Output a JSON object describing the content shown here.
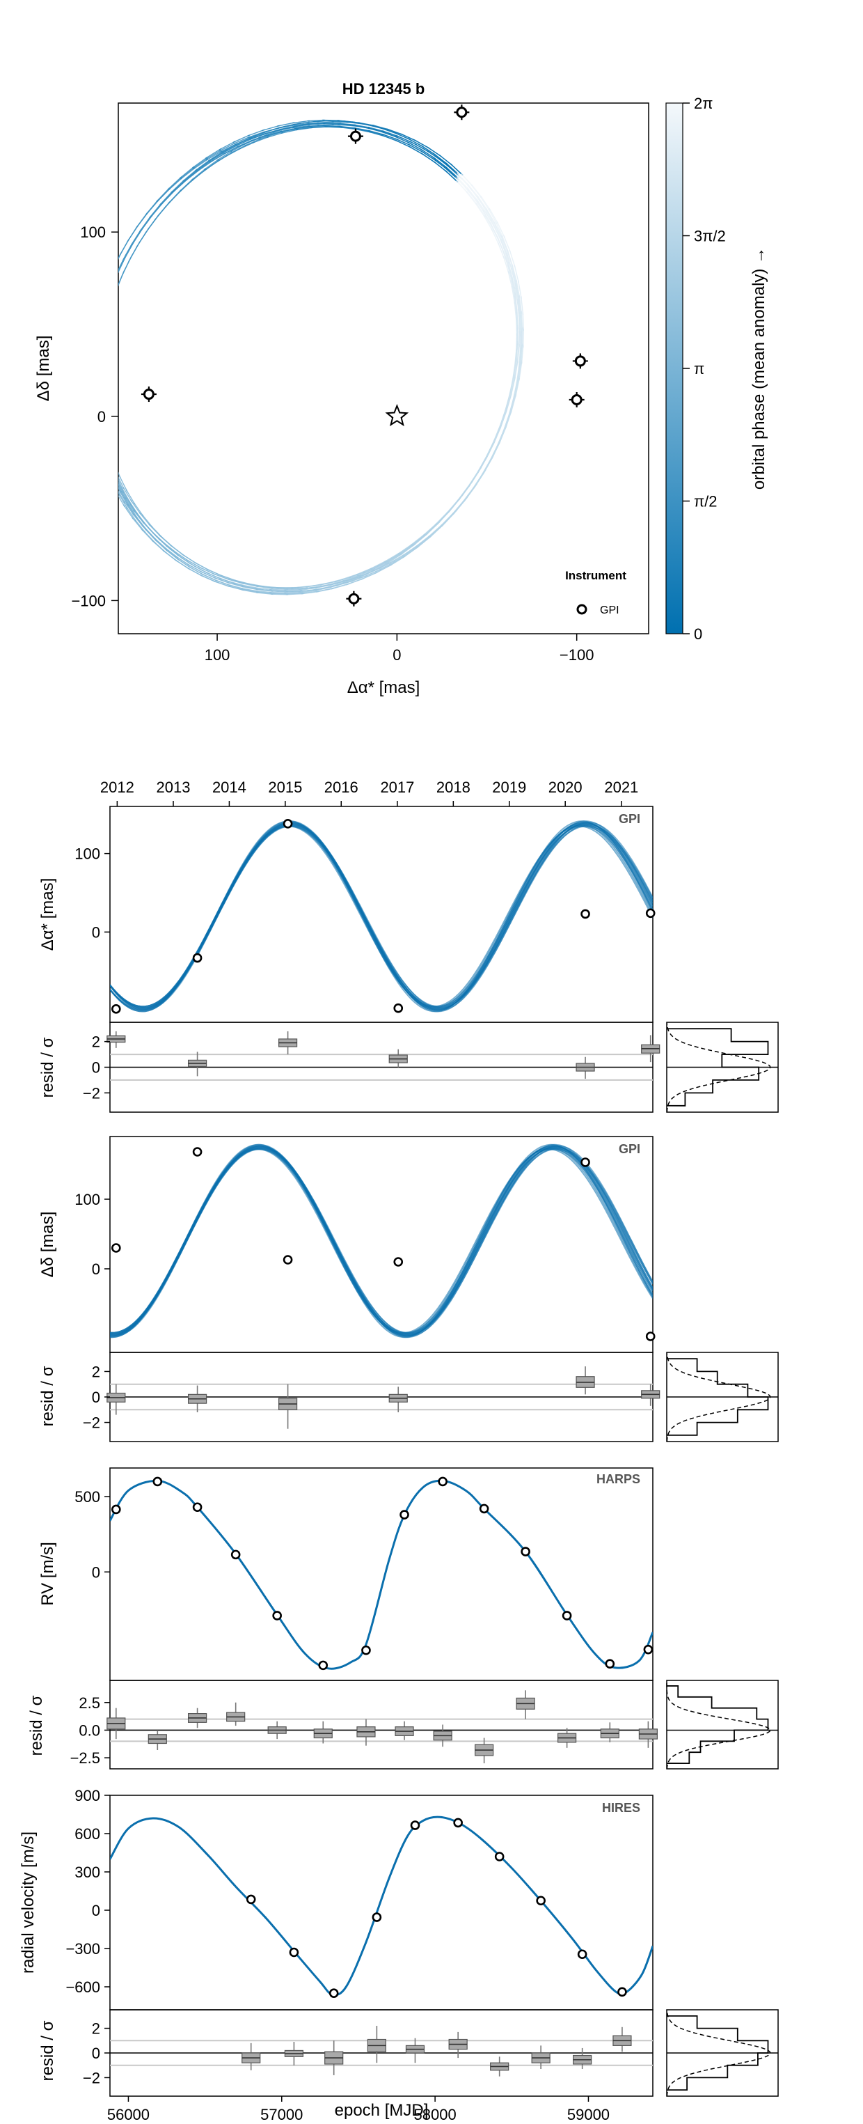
{
  "chart_data": [
    {
      "id": "sky",
      "type": "scatter",
      "title": "HD 12345 b",
      "xlabel": "Δα* [mas]",
      "ylabel": "Δδ [mas]",
      "xlim": [
        155,
        -140
      ],
      "ylim": [
        -118,
        170
      ],
      "xticks": [
        100,
        0,
        -100
      ],
      "xtick_labels": [
        "100",
        "0",
        "−100"
      ],
      "yticks": [
        -100,
        0,
        100
      ],
      "ytick_labels": [
        "−100",
        "0",
        "100"
      ],
      "orbit": {
        "center_x": 50,
        "center_y": 32,
        "a": 115,
        "b": 130,
        "rot_deg": 28
      },
      "points": [
        {
          "x": 23,
          "y": 152
        },
        {
          "x": -36,
          "y": 165
        },
        {
          "x": 138,
          "y": 12
        },
        {
          "x": -102,
          "y": 30
        },
        {
          "x": -100,
          "y": 9
        },
        {
          "x": 24,
          "y": -99
        }
      ],
      "star": {
        "x": 0,
        "y": 0
      },
      "colorbar": {
        "label": "orbital phase (mean anomaly) →",
        "ticks": [
          "0",
          "π/2",
          "π",
          "3π/2",
          "2π"
        ],
        "color_low": "#0070b0",
        "color_high": "#f4f8fb"
      },
      "legend": {
        "title": "Instrument",
        "entries": [
          "GPI"
        ],
        "position": "bottom-right"
      }
    },
    {
      "id": "ra",
      "type": "line",
      "ylabel": "Δα* [mas]",
      "instrument": "GPI",
      "top_axis": {
        "labels": [
          "2012",
          "2013",
          "2014",
          "2015",
          "2016",
          "2017",
          "2018",
          "2019",
          "2020",
          "2021"
        ],
        "mjd": [
          55927,
          56293,
          56658,
          57023,
          57388,
          57754,
          58119,
          58484,
          58849,
          59215
        ]
      },
      "xlim": [
        55880,
        59420
      ],
      "ylim": [
        -115,
        160
      ],
      "yticks": [
        0,
        100
      ],
      "ytick_labels": [
        "0",
        "100"
      ],
      "model": {
        "offset": 20,
        "amp": 118,
        "period": 1920,
        "t0": 56575
      },
      "points": [
        {
          "x": 55920,
          "y": -98
        },
        {
          "x": 56450,
          "y": -33
        },
        {
          "x": 57040,
          "y": 138
        },
        {
          "x": 57760,
          "y": -97
        },
        {
          "x": 58980,
          "y": 23
        },
        {
          "x": 59405,
          "y": 24
        }
      ]
    },
    {
      "id": "ra_resid",
      "type": "box",
      "ylabel": "resid / σ",
      "xlim": [
        55880,
        59420
      ],
      "ylim": [
        -3.5,
        3.5
      ],
      "yticks": [
        -2,
        0,
        2
      ],
      "ytick_labels": [
        "−2",
        "0",
        "2"
      ],
      "hlines": [
        1,
        -1
      ],
      "boxes": [
        {
          "x": 55920,
          "q1": 1.95,
          "med": 2.2,
          "q3": 2.45,
          "lo": 1.5,
          "hi": 2.8
        },
        {
          "x": 56450,
          "q1": 0.05,
          "med": 0.3,
          "q3": 0.55,
          "lo": -0.7,
          "hi": 1.2
        },
        {
          "x": 57040,
          "q1": 1.6,
          "med": 1.9,
          "q3": 2.2,
          "lo": 1.0,
          "hi": 2.8
        },
        {
          "x": 57760,
          "q1": 0.35,
          "med": 0.65,
          "q3": 0.95,
          "lo": 0.0,
          "hi": 1.4
        },
        {
          "x": 58980,
          "q1": -0.3,
          "med": 0.0,
          "q3": 0.3,
          "lo": -0.9,
          "hi": 0.8
        },
        {
          "x": 59405,
          "q1": 1.1,
          "med": 1.45,
          "q3": 1.75,
          "lo": 0.4,
          "hi": 2.5
        }
      ],
      "hist": {
        "bins": [
          -3,
          -2,
          -1,
          0,
          1,
          2,
          3
        ],
        "counts": [
          2,
          5,
          10,
          6,
          11,
          7
        ]
      }
    },
    {
      "id": "dec",
      "type": "line",
      "ylabel": "Δδ [mas]",
      "instrument": "GPI",
      "xlim": [
        55880,
        59420
      ],
      "ylim": [
        -120,
        190
      ],
      "yticks": [
        0,
        100
      ],
      "ytick_labels": [
        "0",
        "100"
      ],
      "model": {
        "offset": 40,
        "amp": 135,
        "period": 1920,
        "t0": 56375
      },
      "points": [
        {
          "x": 55920,
          "y": 30
        },
        {
          "x": 56450,
          "y": 168
        },
        {
          "x": 57040,
          "y": 13
        },
        {
          "x": 57760,
          "y": 10
        },
        {
          "x": 58980,
          "y": 153
        },
        {
          "x": 59405,
          "y": -97
        }
      ]
    },
    {
      "id": "dec_resid",
      "type": "box",
      "ylabel": "resid / σ",
      "xlim": [
        55880,
        59420
      ],
      "ylim": [
        -3.5,
        3.5
      ],
      "yticks": [
        -2,
        0,
        2
      ],
      "ytick_labels": [
        "−2",
        "0",
        "2"
      ],
      "hlines": [
        1,
        -1
      ],
      "boxes": [
        {
          "x": 55920,
          "q1": -0.4,
          "med": -0.05,
          "q3": 0.3,
          "lo": -1.4,
          "hi": 1.0
        },
        {
          "x": 56450,
          "q1": -0.5,
          "med": -0.15,
          "q3": 0.2,
          "lo": -1.2,
          "hi": 0.9
        },
        {
          "x": 57040,
          "q1": -1.0,
          "med": -0.55,
          "q3": -0.1,
          "lo": -2.5,
          "hi": 1.0
        },
        {
          "x": 57760,
          "q1": -0.4,
          "med": -0.1,
          "q3": 0.2,
          "lo": -1.2,
          "hi": 0.8
        },
        {
          "x": 58980,
          "q1": 0.75,
          "med": 1.15,
          "q3": 1.6,
          "lo": 0.2,
          "hi": 2.4
        },
        {
          "x": 59405,
          "q1": -0.1,
          "med": 0.2,
          "q3": 0.5,
          "lo": -0.7,
          "hi": 1.0
        }
      ],
      "hist": {
        "bins": [
          -3,
          -2,
          -1,
          0,
          1,
          2,
          3
        ],
        "counts": [
          3,
          7,
          10,
          8,
          5,
          3
        ]
      }
    },
    {
      "id": "rv_harps",
      "type": "line",
      "ylabel": "RV [m/s]",
      "instrument": "HARPS",
      "xlim": [
        55880,
        59420
      ],
      "ylim": [
        -720,
        690
      ],
      "yticks": [
        0,
        500
      ],
      "ytick_labels": [
        "0",
        "500"
      ],
      "points": [
        {
          "x": 55920,
          "y": 415
        },
        {
          "x": 56190,
          "y": 600
        },
        {
          "x": 56450,
          "y": 430
        },
        {
          "x": 56700,
          "y": 115
        },
        {
          "x": 56970,
          "y": -290
        },
        {
          "x": 57270,
          "y": -620
        },
        {
          "x": 57550,
          "y": -520
        },
        {
          "x": 57800,
          "y": 380
        },
        {
          "x": 58050,
          "y": 600
        },
        {
          "x": 58320,
          "y": 420
        },
        {
          "x": 58590,
          "y": 135
        },
        {
          "x": 58860,
          "y": -290
        },
        {
          "x": 59140,
          "y": -610
        },
        {
          "x": 59390,
          "y": -515
        }
      ]
    },
    {
      "id": "rv_harps_resid",
      "type": "box",
      "ylabel": "resid / σ",
      "xlim": [
        55880,
        59420
      ],
      "ylim": [
        -3.5,
        4.5
      ],
      "yticks": [
        -2.5,
        0.0,
        2.5
      ],
      "ytick_labels": [
        "−2.5",
        "0.0",
        "2.5"
      ],
      "hlines": [
        1,
        -1
      ],
      "boxes": [
        {
          "x": 55920,
          "q1": 0.1,
          "med": 0.6,
          "q3": 1.1,
          "lo": -0.8,
          "hi": 2.0
        },
        {
          "x": 56190,
          "q1": -1.2,
          "med": -0.8,
          "q3": -0.4,
          "lo": -1.8,
          "hi": 0.0
        },
        {
          "x": 56450,
          "q1": 0.7,
          "med": 1.1,
          "q3": 1.5,
          "lo": 0.2,
          "hi": 2.0
        },
        {
          "x": 56700,
          "q1": 0.8,
          "med": 1.2,
          "q3": 1.6,
          "lo": 0.4,
          "hi": 2.5
        },
        {
          "x": 56970,
          "q1": -0.3,
          "med": 0.0,
          "q3": 0.3,
          "lo": -0.8,
          "hi": 0.8
        },
        {
          "x": 57270,
          "q1": -0.7,
          "med": -0.3,
          "q3": 0.1,
          "lo": -1.2,
          "hi": 0.8
        },
        {
          "x": 57550,
          "q1": -0.6,
          "med": -0.15,
          "q3": 0.3,
          "lo": -1.4,
          "hi": 1.0
        },
        {
          "x": 57800,
          "q1": -0.5,
          "med": -0.1,
          "q3": 0.3,
          "lo": -0.9,
          "hi": 0.8
        },
        {
          "x": 58050,
          "q1": -0.9,
          "med": -0.5,
          "q3": -0.1,
          "lo": -1.5,
          "hi": 0.5
        },
        {
          "x": 58320,
          "q1": -2.3,
          "med": -1.8,
          "q3": -1.3,
          "lo": -3.0,
          "hi": -0.7
        },
        {
          "x": 58590,
          "q1": 1.9,
          "med": 2.4,
          "q3": 2.9,
          "lo": 1.0,
          "hi": 3.6
        },
        {
          "x": 58860,
          "q1": -1.1,
          "med": -0.7,
          "q3": -0.3,
          "lo": -1.6,
          "hi": 0.2
        },
        {
          "x": 59140,
          "q1": -0.7,
          "med": -0.3,
          "q3": 0.1,
          "lo": -1.1,
          "hi": 0.7
        },
        {
          "x": 59390,
          "q1": -0.8,
          "med": -0.35,
          "q3": 0.1,
          "lo": -1.6,
          "hi": 0.8
        }
      ],
      "hist": {
        "bins": [
          -3,
          -2,
          -1,
          0,
          1,
          2,
          3,
          4
        ],
        "counts": [
          2,
          3,
          6,
          9,
          8,
          4,
          1
        ]
      }
    },
    {
      "id": "rv_hires",
      "type": "line",
      "ylabel": "radial velocity [m/s]",
      "instrument": "HIRES",
      "xlim": [
        55880,
        59420
      ],
      "ylim": [
        -780,
        900
      ],
      "yticks": [
        -600,
        -300,
        0,
        300,
        600,
        900
      ],
      "ytick_labels": [
        "−600",
        "−300",
        "0",
        "300",
        "600",
        "900"
      ],
      "points": [
        {
          "x": 56800,
          "y": 85
        },
        {
          "x": 57080,
          "y": -330
        },
        {
          "x": 57340,
          "y": -650
        },
        {
          "x": 57620,
          "y": -55
        },
        {
          "x": 57870,
          "y": 665
        },
        {
          "x": 58150,
          "y": 685
        },
        {
          "x": 58420,
          "y": 420
        },
        {
          "x": 58690,
          "y": 75
        },
        {
          "x": 58960,
          "y": -345
        },
        {
          "x": 59220,
          "y": -640
        }
      ],
      "curve": [
        {
          "x": 55880,
          "y": 400
        },
        {
          "x": 56000,
          "y": 640
        },
        {
          "x": 56160,
          "y": 720
        },
        {
          "x": 56330,
          "y": 650
        },
        {
          "x": 56520,
          "y": 430
        },
        {
          "x": 56700,
          "y": 185
        },
        {
          "x": 56900,
          "y": -65
        },
        {
          "x": 57100,
          "y": -350
        },
        {
          "x": 57250,
          "y": -560
        },
        {
          "x": 57330,
          "y": -660
        },
        {
          "x": 57420,
          "y": -600
        },
        {
          "x": 57550,
          "y": -250
        },
        {
          "x": 57700,
          "y": 250
        },
        {
          "x": 57820,
          "y": 580
        },
        {
          "x": 57920,
          "y": 700
        },
        {
          "x": 58030,
          "y": 730
        },
        {
          "x": 58160,
          "y": 680
        },
        {
          "x": 58300,
          "y": 560
        },
        {
          "x": 58500,
          "y": 330
        },
        {
          "x": 58700,
          "y": 60
        },
        {
          "x": 58900,
          "y": -230
        },
        {
          "x": 59050,
          "y": -470
        },
        {
          "x": 59180,
          "y": -640
        },
        {
          "x": 59250,
          "y": -640
        },
        {
          "x": 59350,
          "y": -500
        },
        {
          "x": 59420,
          "y": -280
        }
      ]
    },
    {
      "id": "rv_hires_resid",
      "type": "box",
      "ylabel": "resid / σ",
      "xlabel": "epoch [MJD]",
      "xlim": [
        55880,
        59420
      ],
      "xticks": [
        56000,
        57000,
        58000,
        59000
      ],
      "xtick_labels": [
        "56000",
        "57000",
        "58000",
        "59000"
      ],
      "ylim": [
        -3.5,
        3.5
      ],
      "yticks": [
        -2,
        0,
        2
      ],
      "ytick_labels": [
        "−2",
        "0",
        "2"
      ],
      "hlines": [
        1,
        -1
      ],
      "boxes": [
        {
          "x": 56800,
          "q1": -0.8,
          "med": -0.4,
          "q3": 0.0,
          "lo": -1.4,
          "hi": 0.8
        },
        {
          "x": 57080,
          "q1": -0.3,
          "med": -0.05,
          "q3": 0.2,
          "lo": -1.0,
          "hi": 0.9
        },
        {
          "x": 57340,
          "q1": -0.9,
          "med": -0.4,
          "q3": 0.1,
          "lo": -1.8,
          "hi": 1.0
        },
        {
          "x": 57620,
          "q1": 0.1,
          "med": 0.6,
          "q3": 1.1,
          "lo": -0.8,
          "hi": 2.2
        },
        {
          "x": 57870,
          "q1": 0.0,
          "med": 0.3,
          "q3": 0.6,
          "lo": -0.8,
          "hi": 1.2
        },
        {
          "x": 58150,
          "q1": 0.3,
          "med": 0.7,
          "q3": 1.1,
          "lo": -0.4,
          "hi": 1.7
        },
        {
          "x": 58420,
          "q1": -1.4,
          "med": -1.1,
          "q3": -0.8,
          "lo": -1.9,
          "hi": -0.3
        },
        {
          "x": 58690,
          "q1": -0.8,
          "med": -0.4,
          "q3": 0.0,
          "lo": -1.3,
          "hi": 0.6
        },
        {
          "x": 58960,
          "q1": -0.9,
          "med": -0.55,
          "q3": -0.2,
          "lo": -1.3,
          "hi": 0.4
        },
        {
          "x": 59220,
          "q1": 0.6,
          "med": 1.0,
          "q3": 1.4,
          "lo": 0.1,
          "hi": 2.1
        }
      ],
      "hist": {
        "bins": [
          -3,
          -2,
          -1,
          0,
          1,
          2,
          3
        ],
        "counts": [
          2,
          6,
          9,
          10,
          7,
          3
        ]
      }
    }
  ]
}
